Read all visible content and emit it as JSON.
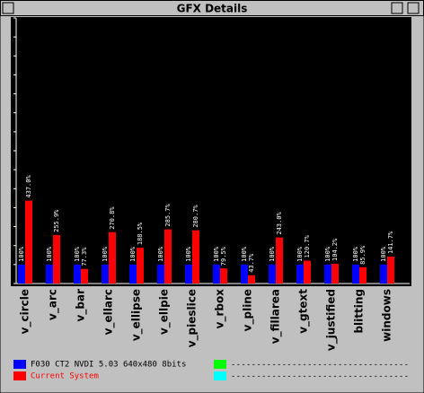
{
  "window": {
    "title": "GFX Details"
  },
  "chart_data": {
    "type": "bar",
    "categories": [
      "v_circle",
      "v_arc",
      "v_bar",
      "v_ellarc",
      "v_ellipse",
      "v_ellpie",
      "v_pieslice",
      "v_rbox",
      "v_pline",
      "v_fillarea",
      "v_gtext",
      "v_justified",
      "blitting",
      "windows"
    ],
    "series": [
      {
        "name": "F030 CT2 NVDI 5.03 640x480 8bits",
        "color": "#0000ff",
        "values": [
          100,
          100,
          100,
          100,
          100,
          100,
          100,
          100,
          100,
          100,
          100,
          100,
          100,
          100
        ],
        "value_labels": [
          "100%",
          "100%",
          "100%",
          "100%",
          "100%",
          "100%",
          "100%",
          "100%",
          "100%",
          "100%",
          "100%",
          "100%",
          "100%",
          "100%"
        ]
      },
      {
        "name": "Current System",
        "color": "#ff0000",
        "values": [
          437.0,
          255.9,
          77.3,
          270.8,
          188.5,
          285.7,
          280.7,
          79.5,
          43.7,
          243.0,
          120.7,
          104.2,
          85.9,
          141.7
        ],
        "value_labels": [
          "437.0%",
          "255.9%",
          "77.3%",
          "270.8%",
          "188.5%",
          "285.7%",
          "280.7%",
          "79.5%",
          "43.7%",
          "243.0%",
          "120.7%",
          "104.2%",
          "85.9%",
          "141.7%"
        ]
      }
    ],
    "ylim": [
      0,
      1400
    ],
    "yticks": [
      0,
      100,
      200,
      300,
      400,
      500,
      600,
      700,
      800,
      900,
      1000,
      1100,
      1200,
      1300,
      1400
    ],
    "empty_slots": [
      {
        "color": "#00ff00",
        "label": "-----------------------------------"
      },
      {
        "color": "#00ffff",
        "label": "-----------------------------------"
      }
    ]
  }
}
